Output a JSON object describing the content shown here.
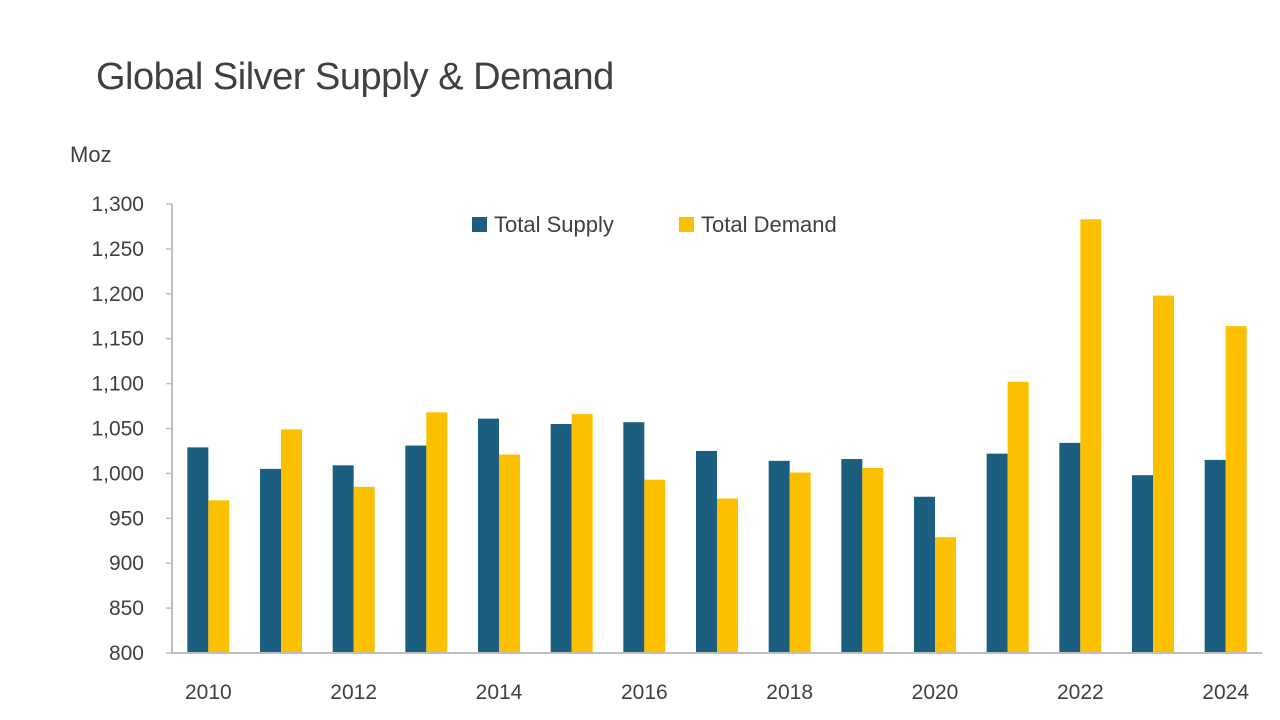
{
  "chart_data": {
    "type": "bar",
    "title": "Global Silver Supply & Demand",
    "ylabel": "Moz",
    "xlabel": "",
    "ylim": [
      800,
      1300
    ],
    "y_ticks": [
      "800",
      "850",
      "900",
      "950",
      "1,000",
      "1,050",
      "1,100",
      "1,150",
      "1,200",
      "1,250",
      "1,300"
    ],
    "categories": [
      "2010",
      "2011",
      "2012",
      "2013",
      "2014",
      "2015",
      "2016",
      "2017",
      "2018",
      "2019",
      "2020",
      "2021",
      "2022",
      "2023",
      "2024"
    ],
    "x_tick_labels": [
      "2010",
      "",
      "2012",
      "",
      "2014",
      "",
      "2016",
      "",
      "2018",
      "",
      "2020",
      "",
      "2022",
      "",
      "2024"
    ],
    "legend_position": "top-center",
    "grid": false,
    "series": [
      {
        "name": "Total Supply",
        "color": "#1b5e80",
        "values": [
          1029,
          1005,
          1009,
          1031,
          1061,
          1055,
          1057,
          1025,
          1014,
          1016,
          974,
          1022,
          1034,
          998,
          1015
        ]
      },
      {
        "name": "Total Demand",
        "color": "#fcc000",
        "values": [
          970,
          1049,
          985,
          1068,
          1021,
          1066,
          993,
          972,
          1001,
          1006,
          929,
          1102,
          1283,
          1198,
          1164
        ]
      }
    ]
  }
}
